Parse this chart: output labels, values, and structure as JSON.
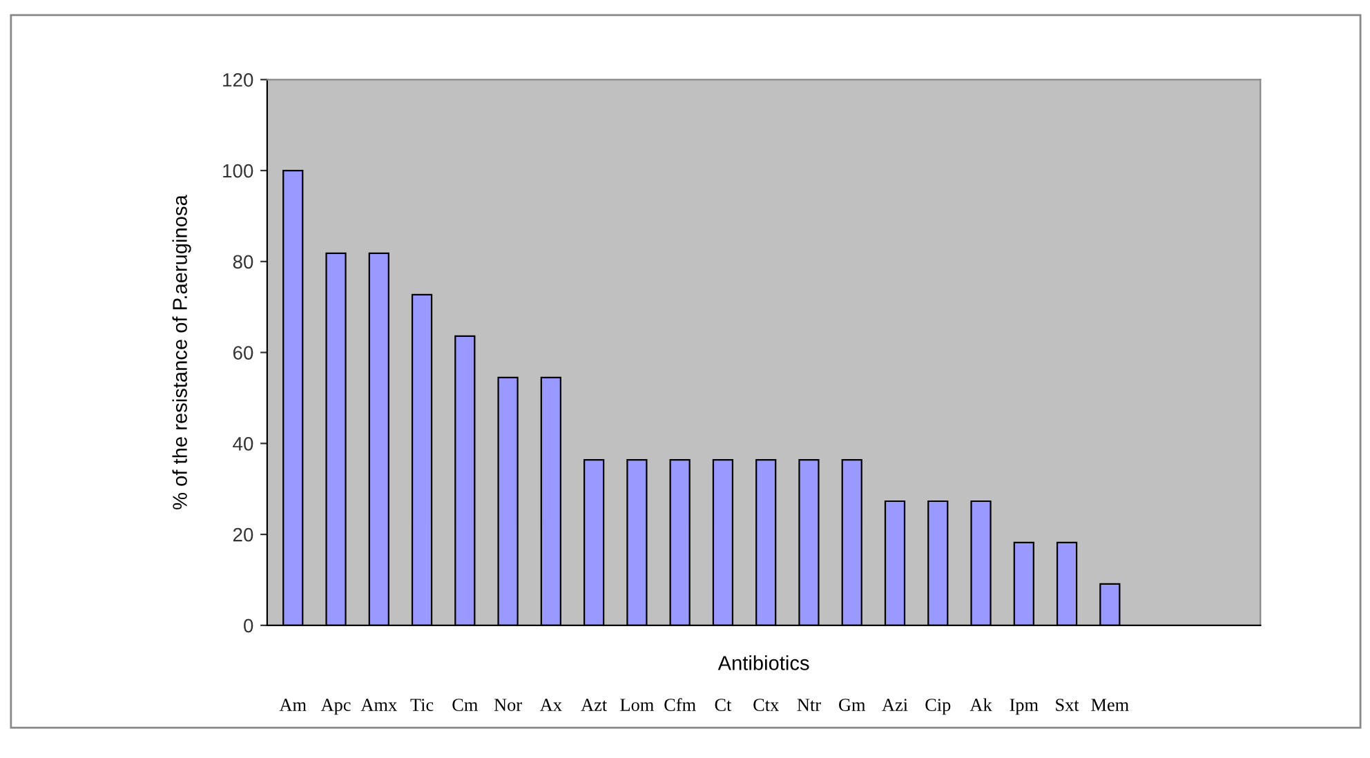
{
  "chart_data": {
    "type": "bar",
    "xlabel": "Antibiotics",
    "ylabel": "% of the resistance of P.aeruginosa",
    "categories": [
      "Am",
      "Apc",
      "Amx",
      "Tic",
      "Cm",
      "Nor",
      "Ax",
      "Azt",
      "Lom",
      "Cfm",
      "Ct",
      "Ctx",
      "Ntr",
      "Gm",
      "Azi",
      "Cip",
      "Ak",
      "Ipm",
      "Sxt",
      "Mem"
    ],
    "values": [
      100,
      81.8,
      81.8,
      72.7,
      63.6,
      54.5,
      54.5,
      36.4,
      36.4,
      36.4,
      36.4,
      36.4,
      36.4,
      36.4,
      27.3,
      27.3,
      27.3,
      18.2,
      18.2,
      9.1
    ],
    "color": "#9999ff",
    "ylim": [
      0,
      120
    ],
    "yticks": [
      0,
      20,
      40,
      60,
      80,
      100,
      120
    ],
    "grid": false,
    "legend": false
  }
}
